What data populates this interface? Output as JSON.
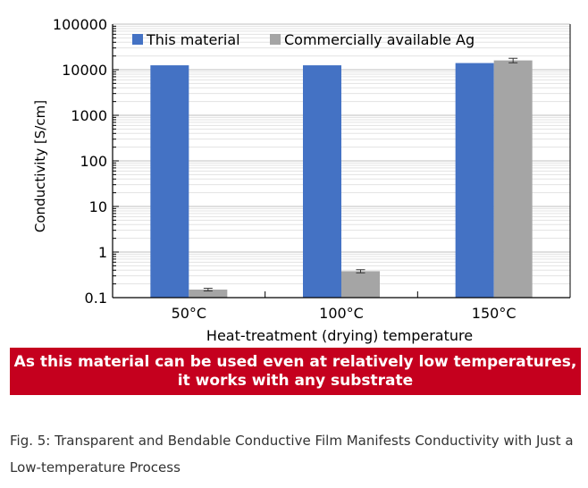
{
  "chart_data": {
    "type": "bar",
    "scale": "log",
    "ylim": [
      0.1,
      100000
    ],
    "yticks": [
      "100000",
      "10000",
      "1000",
      "100",
      "10",
      "1",
      "0.1"
    ],
    "ytick_values": [
      100000,
      10000,
      1000,
      100,
      10,
      1,
      0.1
    ],
    "categories": [
      "50°C",
      "100°C",
      "150°C"
    ],
    "xlabel": "Heat-treatment (drying) temperature",
    "ylabel": "Conductivity [S/cm]",
    "grid": true,
    "legend_position": "top",
    "series": [
      {
        "name": "This material",
        "color": "#4472c4",
        "values": [
          12500,
          12500,
          14000
        ],
        "errors": [
          0,
          0,
          0
        ]
      },
      {
        "name": "Commercially available Ag",
        "color": "#a5a5a5",
        "values": [
          0.15,
          0.38,
          16000
        ],
        "errors": [
          0.01,
          0.03,
          1800
        ]
      }
    ]
  },
  "banner": {
    "line1": "As this material can be used even at relatively low temperatures,",
    "line2": "it works with any substrate"
  },
  "caption": {
    "text": "Fig. 5: Transparent and Bendable Conductive Film Manifests Conductivity with Just a Low-temperature Process"
  }
}
